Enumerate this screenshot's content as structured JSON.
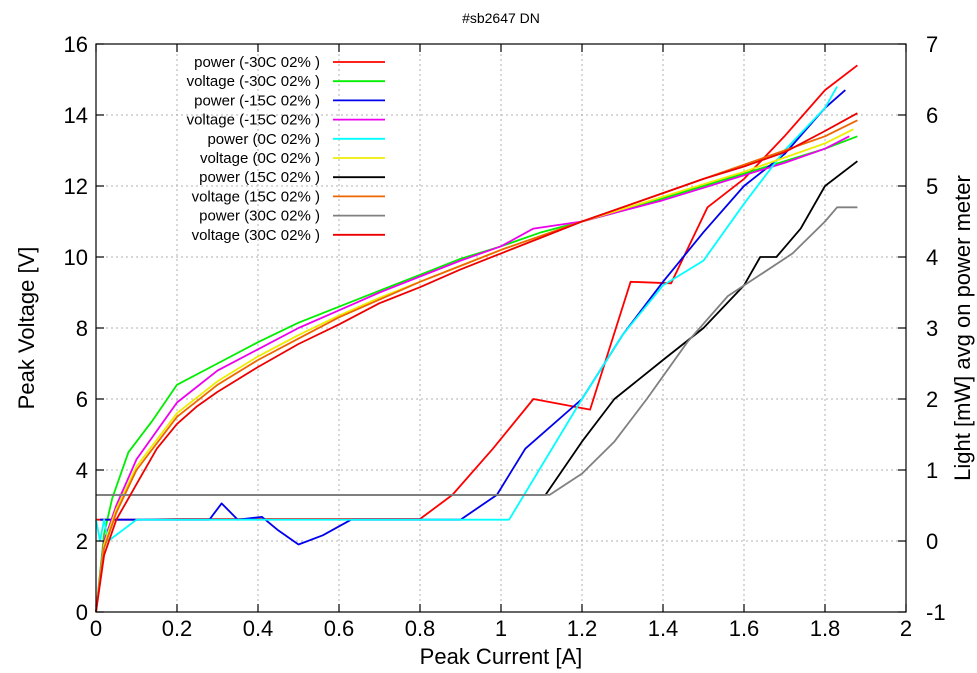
{
  "chart_data": {
    "type": "line",
    "title": "#sb2647 DN",
    "xlabel": "Peak Current [A]",
    "ylabel": "Peak Voltage [V]",
    "y2label": "Light [mW] avg on power meter",
    "xlim": [
      0,
      2
    ],
    "ylim": [
      0,
      16
    ],
    "y2lim": [
      -1,
      7
    ],
    "xticks": [
      "0",
      "0.2",
      "0.4",
      "0.6",
      "0.8",
      "1",
      "1.2",
      "1.4",
      "1.6",
      "1.8",
      "2"
    ],
    "yticks": [
      "0",
      "2",
      "4",
      "6",
      "8",
      "10",
      "12",
      "14",
      "16"
    ],
    "y2ticks": [
      "-1",
      "0",
      "1",
      "2",
      "3",
      "4",
      "5",
      "6",
      "7"
    ],
    "grid": true,
    "legend_position": "top-left",
    "series": [
      {
        "name": "power (-30C 02% )",
        "axis": "y2",
        "color": "#ff0000",
        "x": [
          0,
          0.03,
          0.1,
          0.2,
          0.3,
          0.4,
          0.5,
          0.6,
          0.7,
          0.8,
          0.88,
          0.98,
          1.08,
          1.22,
          1.32,
          1.42,
          1.51,
          1.6,
          1.7,
          1.8,
          1.88
        ],
        "y": [
          0.3,
          0.3,
          0.3,
          0.31,
          0.31,
          0.31,
          0.31,
          0.31,
          0.31,
          0.31,
          0.65,
          1.3,
          2.0,
          1.85,
          3.65,
          3.63,
          4.7,
          5.1,
          5.7,
          6.35,
          6.7
        ]
      },
      {
        "name": "voltage (-30C 02% )",
        "axis": "y",
        "color": "#00ee00",
        "x": [
          0,
          0.02,
          0.04,
          0.08,
          0.14,
          0.2,
          0.3,
          0.4,
          0.5,
          0.6,
          0.7,
          0.8,
          0.9,
          1.0,
          1.1,
          1.2,
          1.3,
          1.4,
          1.5,
          1.6,
          1.7,
          1.8,
          1.88
        ],
        "y": [
          0,
          2.2,
          3.2,
          4.5,
          5.4,
          6.4,
          7.0,
          7.6,
          8.15,
          8.6,
          9.05,
          9.5,
          9.95,
          10.3,
          10.7,
          11.0,
          11.3,
          11.65,
          12.0,
          12.35,
          12.7,
          13.05,
          13.4
        ]
      },
      {
        "name": "power (-15C 02% )",
        "axis": "y2",
        "color": "#0000ee",
        "x": [
          0.01,
          0.1,
          0.2,
          0.28,
          0.31,
          0.35,
          0.41,
          0.45,
          0.5,
          0.56,
          0.63,
          0.7,
          0.8,
          0.9,
          0.99,
          1.06,
          1.2,
          1.3,
          1.4,
          1.5,
          1.6,
          1.7,
          1.8,
          1.85
        ],
        "y": [
          0.3,
          0.3,
          0.3,
          0.3,
          0.53,
          0.3,
          0.34,
          0.15,
          -0.05,
          0.08,
          0.3,
          0.3,
          0.3,
          0.3,
          0.65,
          1.3,
          2.0,
          2.9,
          3.65,
          4.35,
          5.0,
          5.45,
          6.1,
          6.35
        ]
      },
      {
        "name": "voltage (-15C 02% )",
        "axis": "y",
        "color": "#ee00ee",
        "x": [
          0,
          0.02,
          0.05,
          0.1,
          0.2,
          0.3,
          0.4,
          0.5,
          0.6,
          0.7,
          0.8,
          0.9,
          1.0,
          1.08,
          1.2,
          1.3,
          1.4,
          1.5,
          1.6,
          1.7,
          1.8,
          1.86
        ],
        "y": [
          0,
          2.0,
          3.0,
          4.3,
          5.9,
          6.8,
          7.4,
          8.0,
          8.5,
          9.0,
          9.45,
          9.9,
          10.3,
          10.8,
          11.0,
          11.3,
          11.6,
          11.95,
          12.3,
          12.65,
          13.05,
          13.4
        ]
      },
      {
        "name": "power (0C 02% )",
        "axis": "y2",
        "color": "#00ffff",
        "x": [
          0.0,
          0.01,
          0.02,
          0.03,
          0.1,
          0.3,
          0.5,
          0.7,
          0.9,
          1.0,
          1.02,
          1.2,
          1.3,
          1.4,
          1.5,
          1.6,
          1.7,
          1.8,
          1.83
        ],
        "y": [
          0.3,
          0.0,
          0.3,
          0.0,
          0.3,
          0.3,
          0.3,
          0.3,
          0.3,
          0.3,
          0.3,
          2.0,
          2.9,
          3.6,
          3.95,
          4.75,
          5.5,
          6.1,
          6.4
        ]
      },
      {
        "name": "voltage (0C 02% )",
        "axis": "y",
        "color": "#eeee00",
        "x": [
          0,
          0.02,
          0.05,
          0.1,
          0.2,
          0.3,
          0.4,
          0.5,
          0.6,
          0.7,
          0.8,
          0.9,
          1.0,
          1.1,
          1.2,
          1.3,
          1.4,
          1.5,
          1.6,
          1.7,
          1.8,
          1.87
        ],
        "y": [
          0,
          1.9,
          2.9,
          4.1,
          5.6,
          6.5,
          7.2,
          7.8,
          8.35,
          8.85,
          9.3,
          9.75,
          10.2,
          10.6,
          11.0,
          11.35,
          11.7,
          12.05,
          12.4,
          12.8,
          13.2,
          13.6
        ]
      },
      {
        "name": "power (15C 02% )",
        "axis": "y2",
        "color": "#000000",
        "x": [
          0.0,
          0.2,
          0.4,
          0.6,
          0.8,
          1.0,
          1.11,
          1.2,
          1.28,
          1.4,
          1.5,
          1.6,
          1.64,
          1.68,
          1.74,
          1.8,
          1.88
        ],
        "y": [
          0.65,
          0.65,
          0.65,
          0.65,
          0.65,
          0.65,
          0.65,
          1.4,
          2.0,
          2.55,
          3.0,
          3.6,
          4.0,
          4.0,
          4.4,
          5.0,
          5.35
        ]
      },
      {
        "name": "voltage (15C 02% )",
        "axis": "y",
        "color": "#ee6600",
        "x": [
          0,
          0.02,
          0.05,
          0.1,
          0.2,
          0.3,
          0.4,
          0.5,
          0.6,
          0.7,
          0.8,
          0.9,
          1.0,
          1.1,
          1.2,
          1.3,
          1.4,
          1.5,
          1.6,
          1.7,
          1.8,
          1.88
        ],
        "y": [
          0,
          1.8,
          2.8,
          4.0,
          5.5,
          6.4,
          7.1,
          7.7,
          8.3,
          8.8,
          9.3,
          9.75,
          10.2,
          10.6,
          11.0,
          11.4,
          11.8,
          12.2,
          12.6,
          13.0,
          13.4,
          13.85
        ]
      },
      {
        "name": "power (30C 02% )",
        "axis": "y2",
        "color": "#808080",
        "x": [
          0.0,
          0.2,
          0.4,
          0.6,
          0.8,
          1.0,
          1.12,
          1.2,
          1.28,
          1.36,
          1.46,
          1.56,
          1.64,
          1.72,
          1.8,
          1.83,
          1.88
        ],
        "y": [
          0.65,
          0.65,
          0.65,
          0.65,
          0.65,
          0.65,
          0.65,
          0.95,
          1.4,
          2.0,
          2.8,
          3.45,
          3.75,
          4.05,
          4.5,
          4.7,
          4.7
        ]
      },
      {
        "name": "voltage (30C 02% )",
        "axis": "y",
        "color": "#ee0000",
        "x": [
          0,
          0.02,
          0.05,
          0.1,
          0.15,
          0.2,
          0.25,
          0.3,
          0.4,
          0.5,
          0.6,
          0.7,
          0.8,
          0.9,
          1.0,
          1.1,
          1.2,
          1.3,
          1.4,
          1.5,
          1.6,
          1.7,
          1.8,
          1.88
        ],
        "y": [
          0,
          1.6,
          2.6,
          3.6,
          4.6,
          5.3,
          5.8,
          6.2,
          6.9,
          7.55,
          8.1,
          8.7,
          9.15,
          9.65,
          10.1,
          10.55,
          11.0,
          11.4,
          11.8,
          12.2,
          12.55,
          12.95,
          13.55,
          14.05
        ]
      }
    ]
  }
}
